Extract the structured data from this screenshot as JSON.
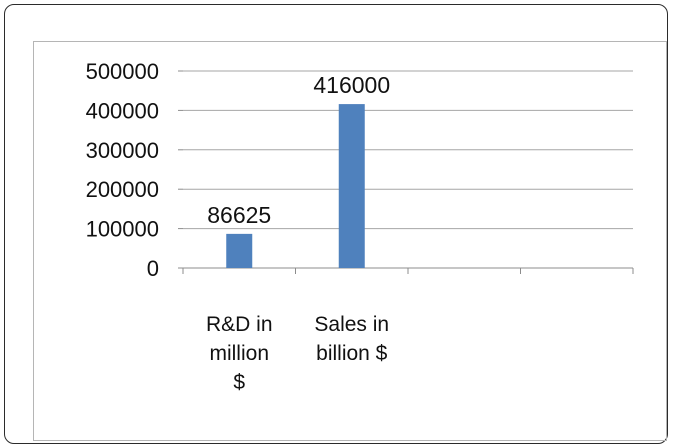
{
  "chart_data": {
    "type": "bar",
    "categories": [
      [
        "R&D in",
        "million",
        "$"
      ],
      [
        "Sales in",
        "billion $"
      ],
      [],
      []
    ],
    "values": [
      86625,
      416000,
      null,
      null
    ],
    "data_labels": [
      "86625",
      "416000",
      "",
      ""
    ],
    "y_ticks": [
      "0",
      "100000",
      "200000",
      "300000",
      "400000",
      "500000"
    ],
    "ylim": [
      0,
      500000
    ],
    "grid": true,
    "legend": "none",
    "title": "",
    "xlabel": "",
    "ylabel": "",
    "bar_color": "#4f81bd",
    "grid_color": "#a6a6a6"
  }
}
